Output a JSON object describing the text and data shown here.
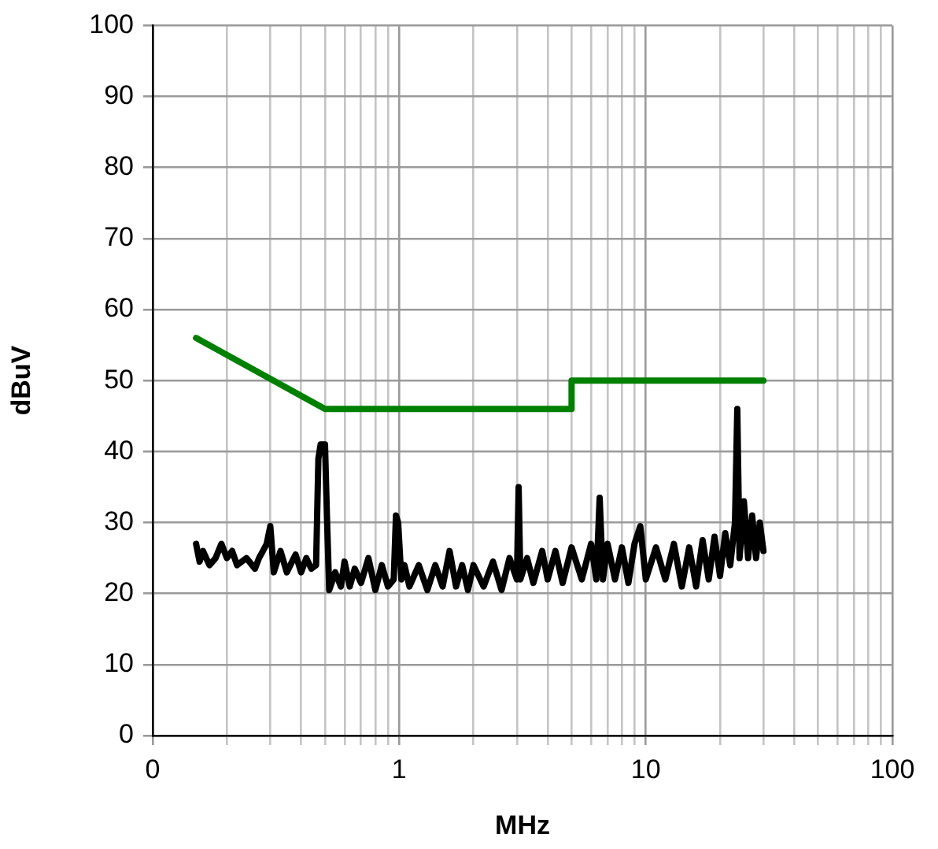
{
  "chart_data": {
    "type": "line",
    "xlabel": "MHz",
    "ylabel": "dBuV",
    "log": "x",
    "grid": true,
    "marker": "none",
    "xlim": [
      0.1,
      100
    ],
    "xticks": [
      {
        "value": 0.1,
        "label": "0"
      },
      {
        "value": 0.2,
        "label": null
      },
      {
        "value": 0.3,
        "label": null
      },
      {
        "value": 0.4,
        "label": null
      },
      {
        "value": 0.5,
        "label": null
      },
      {
        "value": 0.6,
        "label": null
      },
      {
        "value": 0.7,
        "label": null
      },
      {
        "value": 0.8,
        "label": null
      },
      {
        "value": 0.9,
        "label": null
      },
      1,
      {
        "value": 2,
        "label": null
      },
      {
        "value": 3,
        "label": null
      },
      {
        "value": 4,
        "label": null
      },
      {
        "value": 5,
        "label": null
      },
      {
        "value": 6,
        "label": null
      },
      {
        "value": 7,
        "label": null
      },
      {
        "value": 8,
        "label": null
      },
      {
        "value": 9,
        "label": null
      },
      10,
      {
        "value": 20,
        "label": null
      },
      {
        "value": 30,
        "label": null
      },
      {
        "value": 40,
        "label": null
      },
      {
        "value": 50,
        "label": null
      },
      {
        "value": 60,
        "label": null
      },
      {
        "value": 70,
        "label": null
      },
      {
        "value": 80,
        "label": null
      },
      {
        "value": 90,
        "label": null
      },
      100
    ],
    "ylim": [
      0,
      100
    ],
    "yticks": [
      0,
      10,
      20,
      30,
      40,
      50,
      60,
      70,
      80,
      90,
      100
    ],
    "series": [
      {
        "color": "#000000",
        "x": [
          0.15,
          0.155,
          0.16,
          0.17,
          0.18,
          0.19,
          0.2,
          0.21,
          0.22,
          0.24,
          0.26,
          0.27,
          0.28,
          0.29,
          0.3,
          0.31,
          0.33,
          0.35,
          0.38,
          0.4,
          0.42,
          0.44,
          0.46,
          0.47,
          0.48,
          0.5,
          0.51,
          0.52,
          0.55,
          0.58,
          0.6,
          0.63,
          0.66,
          0.7,
          0.75,
          0.8,
          0.85,
          0.9,
          0.95,
          0.97,
          0.99,
          1.02,
          1.05,
          1.1,
          1.2,
          1.3,
          1.4,
          1.5,
          1.6,
          1.7,
          1.8,
          1.9,
          2.0,
          2.2,
          2.4,
          2.6,
          2.8,
          3.0,
          3.05,
          3.1,
          3.3,
          3.5,
          3.8,
          4.0,
          4.3,
          4.6,
          5.0,
          5.5,
          6.0,
          6.3,
          6.5,
          6.7,
          7,
          7.5,
          8,
          8.5,
          9,
          9.5,
          10,
          11,
          12,
          13,
          14,
          15,
          16,
          17,
          18,
          19,
          20,
          21,
          22,
          23,
          23.5,
          24,
          25,
          26,
          27,
          28,
          29,
          30
        ],
        "values": [
          27,
          24.5,
          26,
          24,
          25,
          27,
          25,
          26,
          24,
          25,
          23.5,
          25,
          26,
          27,
          29.5,
          23,
          26,
          23,
          25.5,
          23,
          25,
          23.5,
          24,
          39,
          41,
          41,
          30,
          20.5,
          23,
          21,
          24.5,
          21,
          23.5,
          21.5,
          25,
          20.5,
          24,
          21,
          22,
          31,
          30,
          22,
          24,
          21,
          24,
          20.5,
          24,
          21,
          26,
          21,
          24,
          20.5,
          24,
          21,
          24.5,
          20.5,
          25,
          22,
          35,
          22,
          25,
          21.5,
          26,
          22,
          26,
          21.5,
          26.5,
          22,
          27,
          22,
          33.5,
          22,
          27,
          22,
          26.5,
          21.5,
          27,
          29.5,
          22,
          26.5,
          22,
          27,
          21,
          26.5,
          21,
          27.5,
          22,
          28,
          22.5,
          28.5,
          24,
          30,
          46,
          25,
          33,
          25,
          31,
          25,
          30,
          26
        ]
      },
      {
        "color": "#008000",
        "x": [
          0.15,
          0.5,
          5,
          5,
          30
        ],
        "values": [
          56,
          46,
          46,
          50,
          50
        ]
      }
    ]
  }
}
